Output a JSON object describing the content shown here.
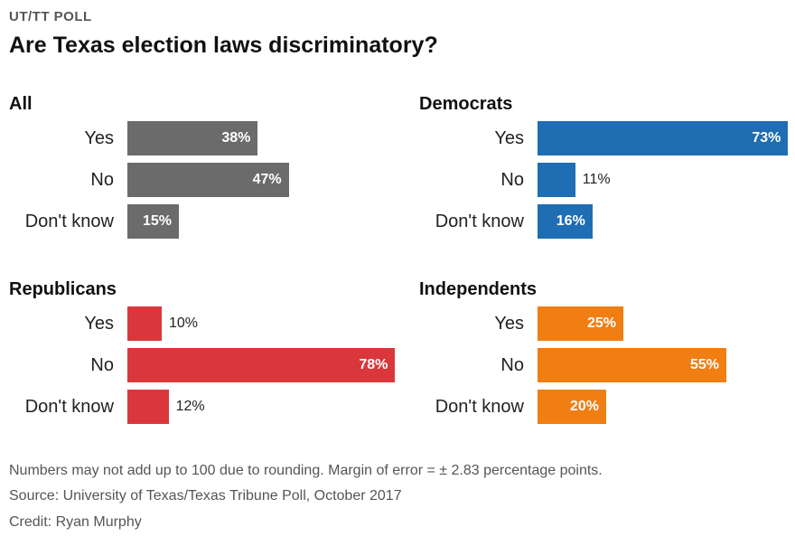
{
  "header": {
    "kicker": "UT/TT POLL",
    "title": "Are Texas election laws discriminatory?"
  },
  "chart_data": [
    {
      "type": "bar",
      "title": "All",
      "categories": [
        "Yes",
        "No",
        "Don't know"
      ],
      "values": [
        38,
        47,
        15
      ],
      "labels": [
        "38%",
        "47%",
        "15%"
      ],
      "color": "#6b6b6b"
    },
    {
      "type": "bar",
      "title": "Democrats",
      "categories": [
        "Yes",
        "No",
        "Don't know"
      ],
      "values": [
        73,
        11,
        16
      ],
      "labels": [
        "73%",
        "11%",
        "16%"
      ],
      "color": "#1f6db3"
    },
    {
      "type": "bar",
      "title": "Republicans",
      "categories": [
        "Yes",
        "No",
        "Don't know"
      ],
      "values": [
        10,
        78,
        12
      ],
      "labels": [
        "10%",
        "78%",
        "12%"
      ],
      "color": "#d9373b"
    },
    {
      "type": "bar",
      "title": "Independents",
      "categories": [
        "Yes",
        "No",
        "Don't know"
      ],
      "values": [
        25,
        55,
        20
      ],
      "labels": [
        "25%",
        "55%",
        "20%"
      ],
      "color": "#f07e13"
    }
  ],
  "footer": {
    "note": "Numbers may not add up to 100 due to rounding. Margin of error = ± 2.83 percentage points.",
    "source": "Source: University of Texas/Texas Tribune Poll, October 2017",
    "credit": "Credit: Ryan Murphy"
  }
}
